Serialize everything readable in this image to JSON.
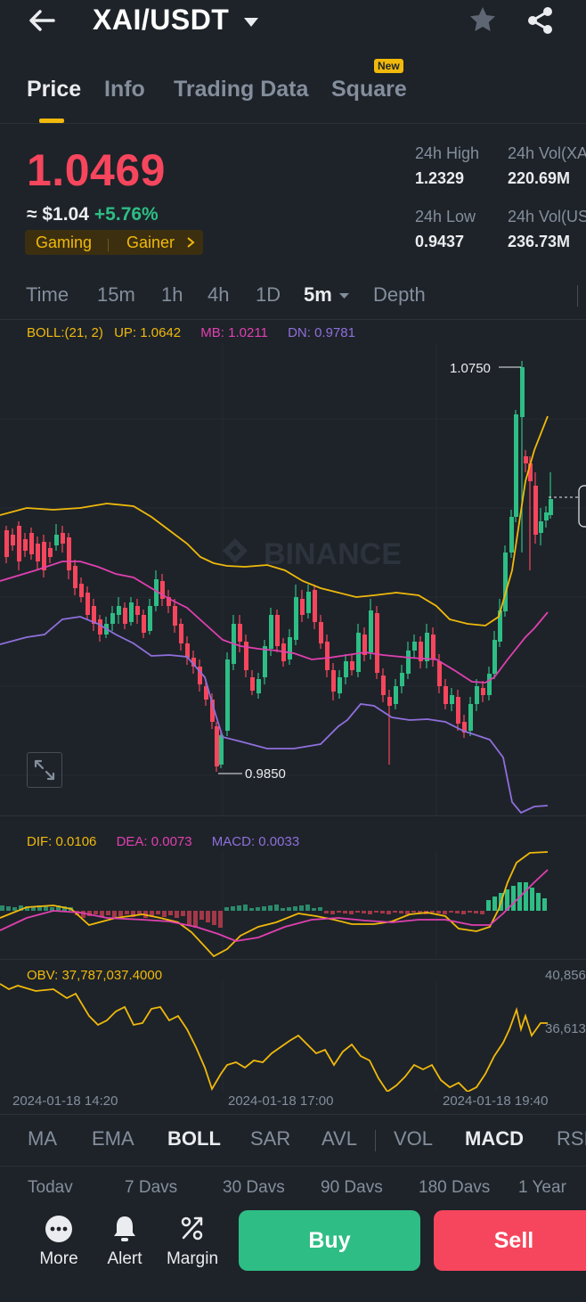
{
  "header": {
    "pair": "XAI/USDT"
  },
  "tabs": [
    {
      "label": "Price"
    },
    {
      "label": "Info"
    },
    {
      "label": "Trading Data"
    },
    {
      "label": "Square"
    }
  ],
  "new_badge": "New",
  "ticker": {
    "price": "1.0469",
    "usd_approx": "≈ $1.04",
    "change": "+5.76%",
    "tags": [
      "Gaming",
      "Gainer"
    ],
    "high_label": "24h High",
    "high_value": "1.2329",
    "low_label": "24h Low",
    "low_value": "0.9437",
    "vol_base_label": "24h Vol(XA",
    "vol_base_value": "220.69M",
    "vol_quote_label": "24h Vol(US",
    "vol_quote_value": "236.73M"
  },
  "timeframes": [
    {
      "label": "Time"
    },
    {
      "label": "15m"
    },
    {
      "label": "1h"
    },
    {
      "label": "4h"
    },
    {
      "label": "1D"
    },
    {
      "label": "5m"
    },
    {
      "label": "Depth"
    }
  ],
  "boll": {
    "label": "BOLL:(21, 2)",
    "up": "UP: 1.0642",
    "mb": "MB: 1.0211",
    "dn": "DN: 0.9781"
  },
  "chart_labels": {
    "high_marker": "1.0750",
    "low_marker": "0.9850",
    "watermark": "BINANCE"
  },
  "macd": {
    "dif": "DIF: 0.0106",
    "dea": "DEA: 0.0073",
    "macd": "MACD: 0.0033"
  },
  "obv": {
    "label": "OBV: 37,787,037.4000",
    "axis_top": "40,856",
    "axis_mid": "36,613"
  },
  "time_axis": [
    "2024-01-18 14:20",
    "2024-01-18 17:00",
    "2024-01-18 19:40"
  ],
  "indicators": [
    {
      "label": "MA"
    },
    {
      "label": "EMA"
    },
    {
      "label": "BOLL"
    },
    {
      "label": "SAR"
    },
    {
      "label": "AVL"
    },
    {
      "label": "VOL"
    },
    {
      "label": "MACD"
    },
    {
      "label": "RSI"
    }
  ],
  "periods": [
    {
      "label": "Todav"
    },
    {
      "label": "7 Davs"
    },
    {
      "label": "30 Davs"
    },
    {
      "label": "90 Davs"
    },
    {
      "label": "180 Davs"
    },
    {
      "label": "1 Year"
    }
  ],
  "actions": [
    {
      "label": "More",
      "icon": "more-icon"
    },
    {
      "label": "Alert",
      "icon": "bell-icon"
    },
    {
      "label": "Margin",
      "icon": "margin-icon"
    }
  ],
  "buttons": {
    "buy": "Buy",
    "sell": "Sell"
  },
  "colors": {
    "up": "#2ebd85",
    "down": "#f6465d",
    "accent": "#f0b90b",
    "boll_up": "#f0b90b",
    "boll_mb": "#e040b0",
    "boll_dn": "#8f6fdc"
  }
}
